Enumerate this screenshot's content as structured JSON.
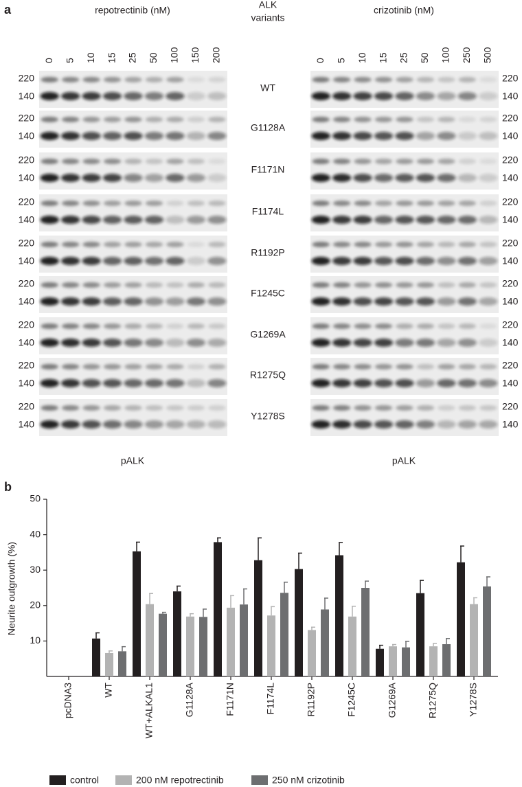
{
  "panel_a": {
    "label": "a",
    "left_title": "repotrectinib (nM)",
    "center_title": [
      "ALK",
      "variants"
    ],
    "right_title": "crizotinib (nM)",
    "left_doses": [
      0,
      5,
      10,
      15,
      25,
      50,
      100,
      150,
      200
    ],
    "right_doses": [
      0,
      5,
      10,
      15,
      25,
      50,
      100,
      250,
      500
    ],
    "variants": [
      "WT",
      "G1128A",
      "F1171N",
      "F1174L",
      "R1192P",
      "F1245C",
      "G1269A",
      "R1275Q",
      "Y1278S"
    ],
    "mw_labels": [
      "220",
      "140"
    ],
    "left_footer": "pALK",
    "right_footer": "pALK"
  },
  "panel_b": {
    "label": "b"
  },
  "chart_data": {
    "type": "bar",
    "ylabel": "Neurite outgrowth (%)",
    "categories": [
      "pcDNA3",
      "WT",
      "WT+ALKAL1",
      "G1128A",
      "F1171N",
      "F1174L",
      "R1192P",
      "F1245C",
      "G1269A",
      "R1275Q",
      "Y1278S"
    ],
    "series": [
      {
        "name": "control",
        "color": "#231f20",
        "values": [
          0,
          10.7,
          35.3,
          24.0,
          37.9,
          32.8,
          30.3,
          34.2,
          7.8,
          23.5,
          32.2
        ],
        "errors": [
          0,
          1.6,
          2.6,
          1.5,
          1.2,
          6.3,
          4.5,
          3.6,
          1.0,
          3.6,
          4.6
        ]
      },
      {
        "name": "200 nM repotrectinib",
        "color": "#b3b3b3",
        "values": [
          0,
          6.6,
          20.4,
          16.9,
          19.4,
          17.2,
          13.1,
          16.9,
          8.5,
          8.5,
          20.4
        ],
        "errors": [
          0,
          0.6,
          3.0,
          0.8,
          3.4,
          2.5,
          0.8,
          2.9,
          0.5,
          0.8,
          1.8
        ]
      },
      {
        "name": "250 nM crizotinib",
        "color": "#6d6e70",
        "values": [
          0,
          7.1,
          17.7,
          16.8,
          20.3,
          23.6,
          18.9,
          25.0,
          8.2,
          9.1,
          25.4
        ],
        "errors": [
          0,
          1.3,
          0.4,
          2.2,
          4.4,
          3.0,
          3.2,
          1.9,
          1.7,
          1.6,
          2.7
        ]
      }
    ],
    "ylim": [
      0,
      50
    ],
    "yticks": [
      10,
      20,
      30,
      40,
      50
    ],
    "grid": false,
    "legend": "bottom"
  }
}
